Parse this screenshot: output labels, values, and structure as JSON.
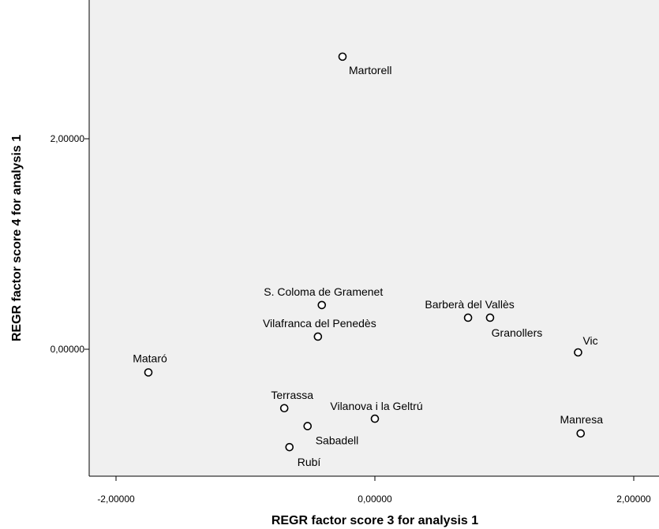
{
  "chart_data": {
    "type": "scatter",
    "xlabel": "REGR factor score   3 for analysis 1",
    "ylabel": "REGR factor score   4 for analysis 1",
    "xlim": [
      -2.2,
      2.2
    ],
    "ylim": [
      -1.2,
      3.2
    ],
    "x_ticks": [
      {
        "value": -2,
        "label": "-2,00000"
      },
      {
        "value": 0,
        "label": "0,00000"
      },
      {
        "value": 2,
        "label": "2,00000"
      }
    ],
    "y_ticks": [
      {
        "value": 0,
        "label": "0,00000"
      },
      {
        "value": 2,
        "label": "2,00000"
      }
    ],
    "plot_background": "#f0f0f0",
    "grid": false,
    "points": [
      {
        "label": "Martorell",
        "x": -0.25,
        "y": 2.78
      },
      {
        "label": "S. Coloma de Gramenet",
        "x": -0.41,
        "y": 0.42
      },
      {
        "label": "Vilafranca del Penedès",
        "x": -0.44,
        "y": 0.12
      },
      {
        "label": "Barberà del Vallès",
        "x": 0.72,
        "y": 0.3
      },
      {
        "label": "Granollers",
        "x": 0.89,
        "y": 0.3
      },
      {
        "label": "Vic",
        "x": 1.57,
        "y": -0.03
      },
      {
        "label": "Mataró",
        "x": -1.75,
        "y": -0.22
      },
      {
        "label": "Terrassa",
        "x": -0.7,
        "y": -0.56
      },
      {
        "label": "Vilanova i la Geltrú",
        "x": 0.0,
        "y": -0.66
      },
      {
        "label": "Sabadell",
        "x": -0.52,
        "y": -0.73
      },
      {
        "label": "Manresa",
        "x": 1.59,
        "y": -0.8
      },
      {
        "label": "Rubí",
        "x": -0.66,
        "y": -0.93
      }
    ]
  }
}
